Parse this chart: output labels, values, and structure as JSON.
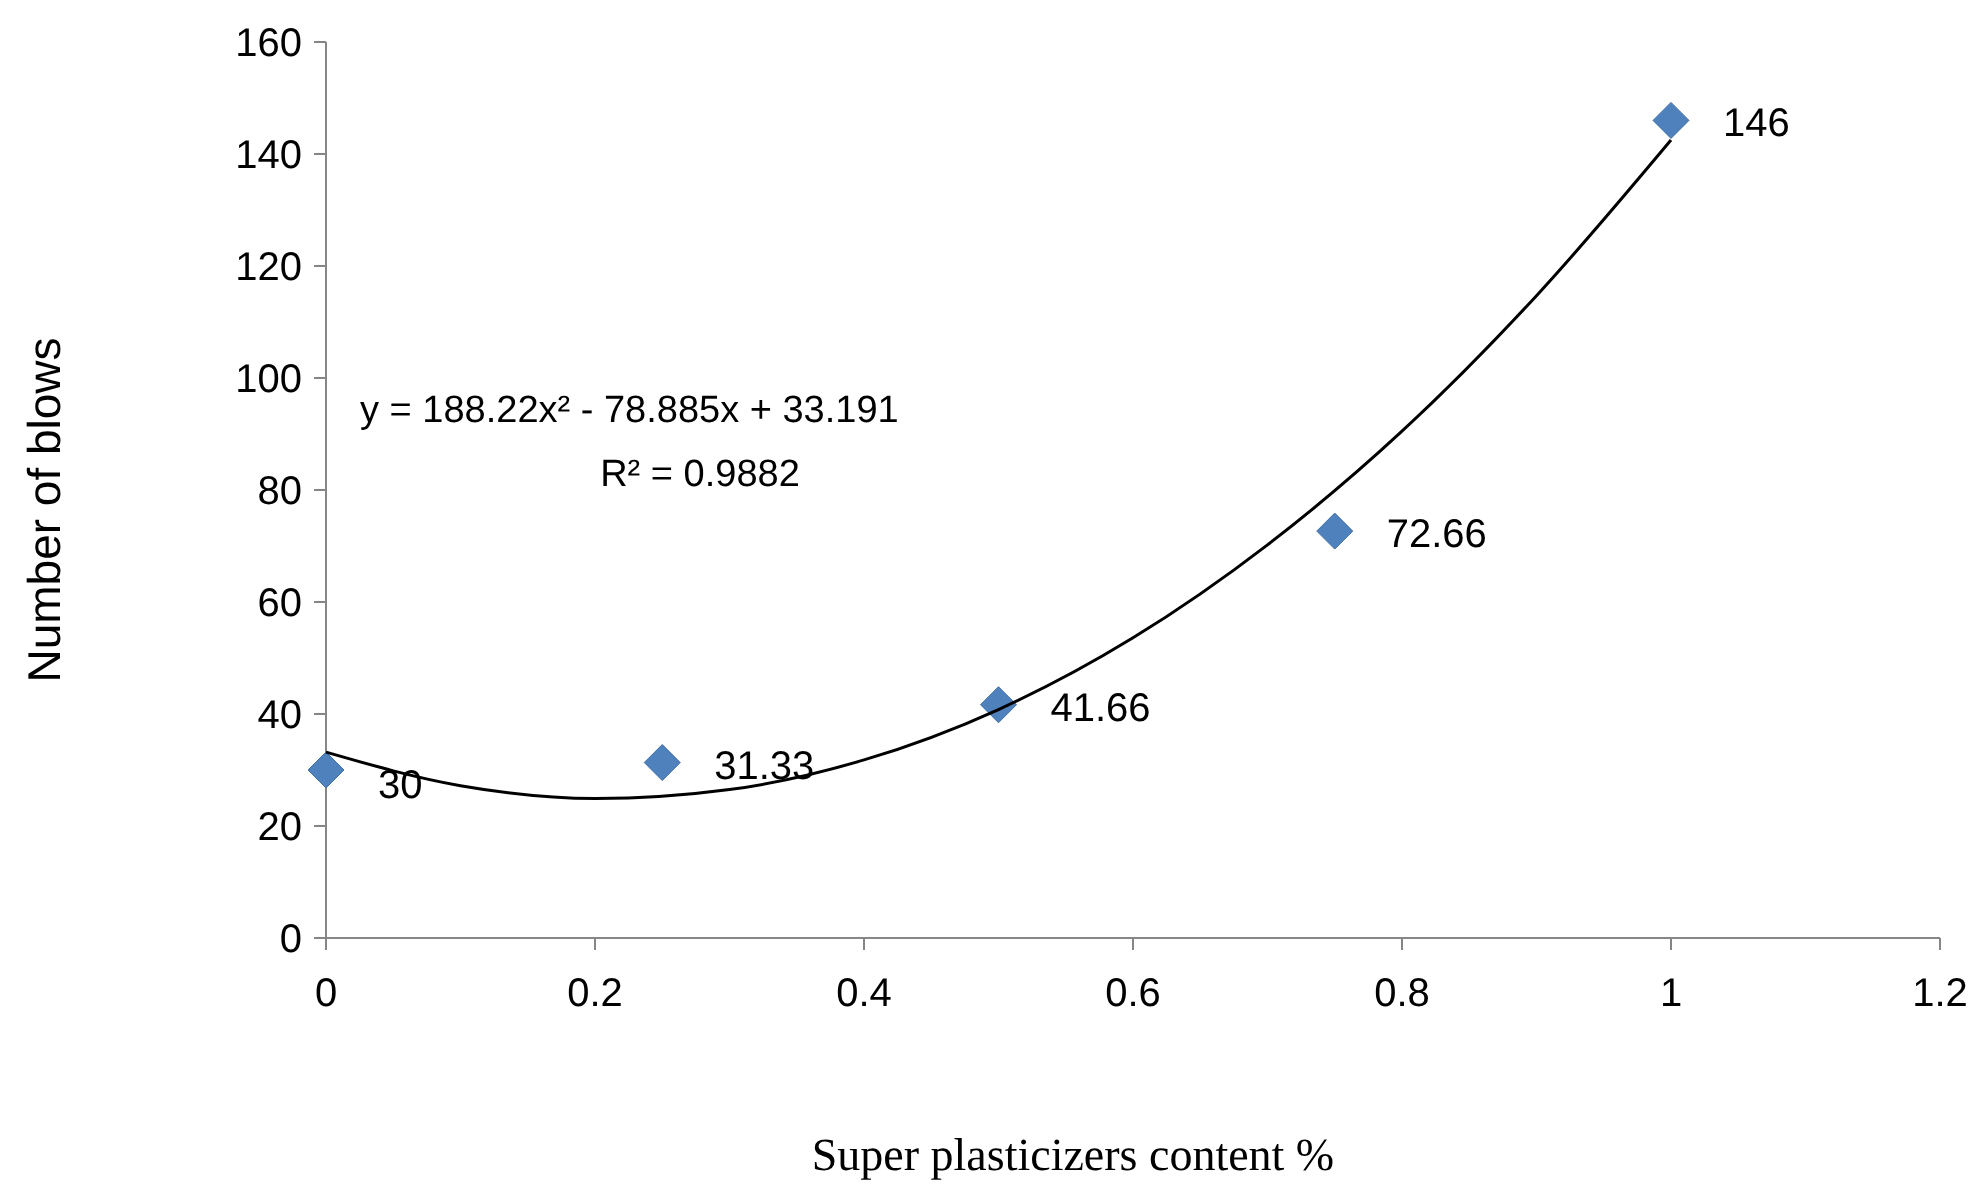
{
  "chart_data": {
    "type": "scatter",
    "xlabel": "Super plasticizers content %",
    "ylabel": "Number of blows",
    "xlim": [
      0,
      1.2
    ],
    "xticks": [
      0,
      0.2,
      0.4,
      0.6,
      0.8,
      1,
      1.2
    ],
    "ylim": [
      0,
      160
    ],
    "yticks": [
      0,
      20,
      40,
      60,
      80,
      100,
      120,
      140,
      160
    ],
    "grid": false,
    "annotations": [
      "y = 188.22x² - 78.885x + 33.191",
      "R² = 0.9882"
    ],
    "series": [
      {
        "marker": "diamond",
        "color": "#4f81bd",
        "x": [
          0,
          0.25,
          0.5,
          0.75,
          1
        ],
        "values": [
          30,
          31.33,
          41.66,
          72.66,
          146
        ],
        "value_labels": [
          "30",
          "31.33",
          "41.66",
          "72.66",
          "146"
        ]
      },
      {
        "type": "line",
        "color": "#000000",
        "line_style": "solid",
        "x": [
          0,
          0.1,
          0.2,
          0.3,
          0.4,
          0.5,
          0.6,
          0.7,
          0.8,
          0.9,
          1
        ],
        "values": [
          33.2,
          27.2,
          24.9,
          26.5,
          31.8,
          40.8,
          53.6,
          70.2,
          90.5,
          114.7,
          142.5
        ]
      }
    ]
  }
}
